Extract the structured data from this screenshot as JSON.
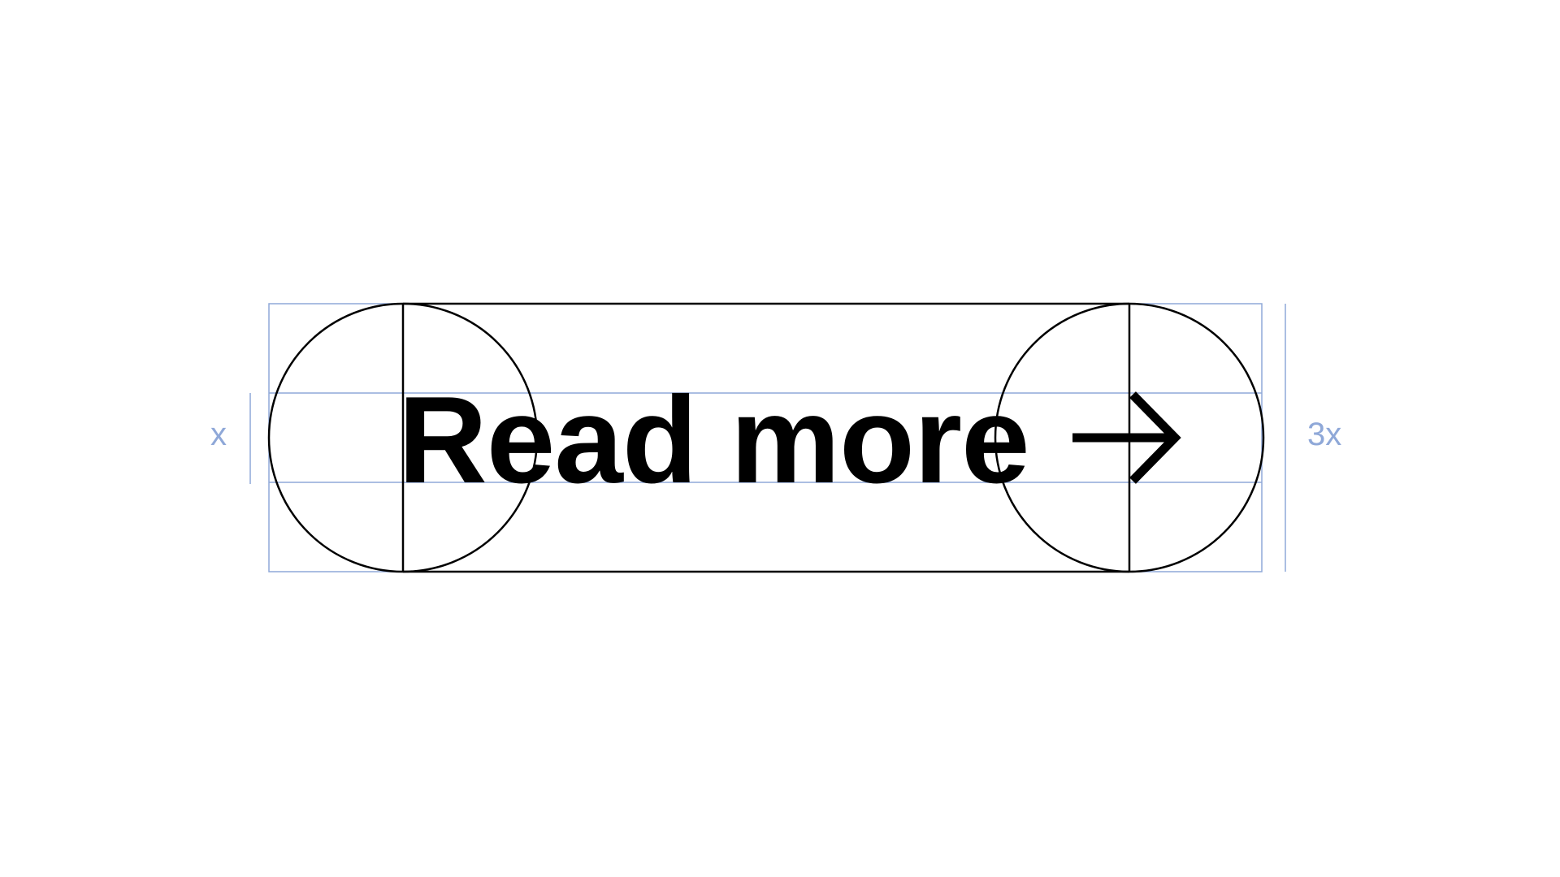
{
  "button": {
    "label": "Read more",
    "icon": "arrow-right-icon"
  },
  "dimensions": {
    "text_height_label": "x",
    "button_height_label": "3x"
  },
  "colors": {
    "guide": "#8fa8d8",
    "stroke": "#000000",
    "background": "#ffffff"
  }
}
